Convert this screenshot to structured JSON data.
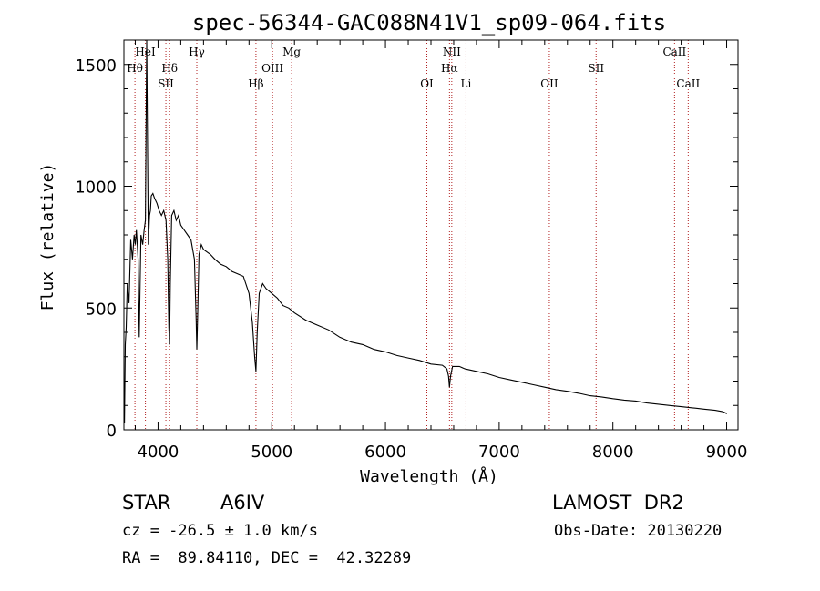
{
  "chart_data": {
    "type": "line",
    "title": "spec-56344-GAC088N41V1_sp09-064.fits",
    "xlabel": "Wavelength (Å)",
    "ylabel": "Flux (relative)",
    "xlim": [
      3700,
      9100
    ],
    "ylim": [
      0,
      1600
    ],
    "xticks": [
      4000,
      5000,
      6000,
      7000,
      8000,
      9000
    ],
    "yticks": [
      0,
      500,
      1000,
      1500
    ],
    "grid": false,
    "series": [
      {
        "x": [
          3705,
          3712,
          3720,
          3730,
          3745,
          3760,
          3775,
          3790,
          3800,
          3810,
          3825,
          3835,
          3850,
          3865,
          3878,
          3889,
          3900,
          3915,
          3925,
          3933,
          3940,
          3955,
          3970,
          3990,
          4010,
          4030,
          4050,
          4070,
          4085,
          4095,
          4101,
          4108,
          4120,
          4140,
          4160,
          4180,
          4200,
          4230,
          4260,
          4290,
          4320,
          4335,
          4341,
          4347,
          4360,
          4380,
          4400,
          4430,
          4460,
          4500,
          4550,
          4600,
          4650,
          4700,
          4750,
          4800,
          4830,
          4850,
          4861,
          4872,
          4890,
          4920,
          4950,
          5000,
          5050,
          5100,
          5150,
          5200,
          5300,
          5400,
          5500,
          5600,
          5700,
          5800,
          5900,
          6000,
          6100,
          6200,
          6300,
          6400,
          6500,
          6540,
          6555,
          6563,
          6572,
          6590,
          6650,
          6700,
          6800,
          6900,
          7000,
          7100,
          7200,
          7300,
          7400,
          7500,
          7600,
          7700,
          7800,
          7900,
          8000,
          8100,
          8200,
          8300,
          8400,
          8500,
          8600,
          8700,
          8800,
          8900,
          8960,
          8990,
          9000
        ],
        "y": [
          30,
          350,
          420,
          600,
          520,
          780,
          700,
          800,
          760,
          820,
          700,
          380,
          800,
          760,
          820,
          860,
          1600,
          760,
          880,
          900,
          960,
          970,
          950,
          930,
          900,
          880,
          900,
          860,
          700,
          420,
          350,
          600,
          880,
          900,
          860,
          880,
          840,
          820,
          800,
          780,
          700,
          450,
          330,
          450,
          720,
          760,
          740,
          730,
          720,
          700,
          680,
          670,
          650,
          640,
          630,
          560,
          440,
          300,
          240,
          400,
          560,
          600,
          580,
          560,
          540,
          510,
          500,
          480,
          450,
          430,
          410,
          380,
          360,
          350,
          330,
          320,
          305,
          295,
          285,
          270,
          265,
          250,
          220,
          175,
          220,
          260,
          260,
          250,
          240,
          230,
          215,
          205,
          195,
          185,
          175,
          165,
          158,
          150,
          140,
          135,
          128,
          122,
          118,
          110,
          105,
          100,
          95,
          90,
          85,
          80,
          75,
          70,
          65
        ]
      }
    ],
    "lines": [
      {
        "label": "HeI",
        "x": 3889,
        "row": 0
      },
      {
        "label": "Hθ",
        "x": 3797,
        "row": 1
      },
      {
        "label": "Hδ",
        "x": 4102,
        "row": 1
      },
      {
        "label": "SII",
        "x": 4069,
        "row": 2
      },
      {
        "label": "Hγ",
        "x": 4341,
        "row": 0
      },
      {
        "label": "Hβ",
        "x": 4861,
        "row": 2
      },
      {
        "label": "OIII",
        "x": 5007,
        "row": 1
      },
      {
        "label": "Mg",
        "x": 5175,
        "row": 0
      },
      {
        "label": "OI",
        "x": 6364,
        "row": 2
      },
      {
        "label": "NII",
        "x": 6583,
        "row": 0
      },
      {
        "label": "Hα",
        "x": 6563,
        "row": 1
      },
      {
        "label": "Li",
        "x": 6708,
        "row": 2
      },
      {
        "label": "OII",
        "x": 7441,
        "row": 2
      },
      {
        "label": "SII",
        "x": 7852,
        "row": 1
      },
      {
        "label": "CaII",
        "x": 8542,
        "row": 0
      },
      {
        "label": "CaII",
        "x": 8662,
        "row": 2
      }
    ]
  },
  "footer": {
    "object_class": "STAR",
    "subclass": "A6IV",
    "survey": "LAMOST  DR2",
    "cz": "cz = -26.5 ± 1.0 km/s",
    "obs_date": "Obs-Date: 20130220",
    "coords": "RA =  89.84110, DEC =  42.32289"
  }
}
